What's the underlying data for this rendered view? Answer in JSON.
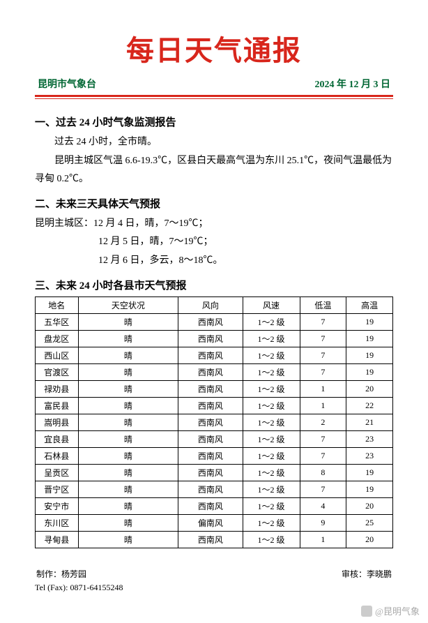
{
  "colors": {
    "title": "#d8261c",
    "subhead": "#006633",
    "rule": "#d8261c",
    "text": "#000000",
    "background": "#ffffff",
    "table_border": "#000000",
    "watermark": "rgba(0,0,0,0.35)"
  },
  "header": {
    "title": "每日天气通报",
    "station": "昆明市气象台",
    "date": "2024 年 12 月 3 日"
  },
  "section1": {
    "heading": "一、过去 24 小时气象监测报告",
    "line1": "过去 24 小时，全市晴。",
    "line2": "昆明主城区气温 6.6-19.3℃，区县白天最高气温为东川 25.1℃，夜间气温最低为寻甸 0.2℃。"
  },
  "section2": {
    "heading": "二、未来三天具体天气预报",
    "lead": "昆明主城区：",
    "d1": "12 月 4 日，晴，7～19℃；",
    "d2": "12 月 5 日，晴，7～19℃；",
    "d3": "12 月 6 日，多云，8～18℃。"
  },
  "section3": {
    "heading": "三、未来 24 小时各县市天气预报"
  },
  "table": {
    "columns": [
      "地名",
      "天空状况",
      "风向",
      "风速",
      "低温",
      "高温"
    ],
    "rows": [
      [
        "五华区",
        "晴",
        "西南风",
        "1～2 级",
        "7",
        "19"
      ],
      [
        "盘龙区",
        "晴",
        "西南风",
        "1～2 级",
        "7",
        "19"
      ],
      [
        "西山区",
        "晴",
        "西南风",
        "1～2 级",
        "7",
        "19"
      ],
      [
        "官渡区",
        "晴",
        "西南风",
        "1～2 级",
        "7",
        "19"
      ],
      [
        "禄劝县",
        "晴",
        "西南风",
        "1～2 级",
        "1",
        "20"
      ],
      [
        "富民县",
        "晴",
        "西南风",
        "1～2 级",
        "1",
        "22"
      ],
      [
        "嵩明县",
        "晴",
        "西南风",
        "1～2 级",
        "2",
        "21"
      ],
      [
        "宜良县",
        "晴",
        "西南风",
        "1～2 级",
        "7",
        "23"
      ],
      [
        "石林县",
        "晴",
        "西南风",
        "1～2 级",
        "7",
        "23"
      ],
      [
        "呈贡区",
        "晴",
        "西南风",
        "1～2 级",
        "8",
        "19"
      ],
      [
        "晋宁区",
        "晴",
        "西南风",
        "1～2 级",
        "7",
        "19"
      ],
      [
        "安宁市",
        "晴",
        "西南风",
        "1～2 级",
        "4",
        "20"
      ],
      [
        "东川区",
        "晴",
        "偏南风",
        "1～2 级",
        "9",
        "25"
      ],
      [
        "寻甸县",
        "晴",
        "西南风",
        "1～2 级",
        "1",
        "20"
      ]
    ]
  },
  "footer": {
    "maker_label": "制作：",
    "maker": "杨芳园",
    "reviewer_label": "审核：",
    "reviewer": "李晓鹏",
    "tel_label": "Tel (Fax): ",
    "tel": "0871-64155248"
  },
  "watermark": {
    "text": "@昆明气象"
  }
}
